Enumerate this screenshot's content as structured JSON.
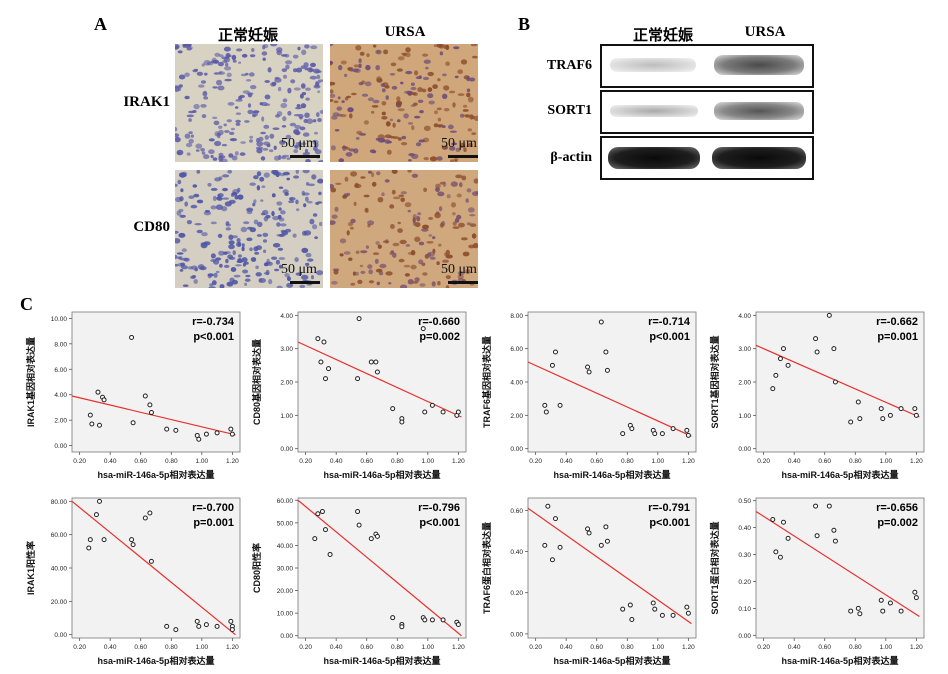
{
  "panel_a": {
    "letter": "A",
    "columns": [
      "正常妊娠",
      "URSA"
    ],
    "rows": [
      "IRAK1",
      "CD80"
    ],
    "scale_label": "50 μm"
  },
  "panel_b": {
    "letter": "B",
    "columns": [
      "正常妊娠",
      "URSA"
    ],
    "rows": [
      "TRAF6",
      "SORT1",
      "β-actin"
    ]
  },
  "panel_c": {
    "letter": "C"
  },
  "colors": {
    "regression_line": "#e8302c",
    "plot_bg": "#f2f2f2",
    "point_edge": "#222222"
  },
  "chart_data": [
    {
      "type": "scatter",
      "xlabel": "hsa-miR-146a-5p相对表达量",
      "ylabel": "IRAK1基因相对表达量",
      "xlim": [
        0.15,
        1.25
      ],
      "ylim": [
        -0.5,
        10.5
      ],
      "xticks": [
        "0.20",
        "0.40",
        "0.60",
        "0.80",
        "1.00",
        "1.20"
      ],
      "yticks": [
        "0.00",
        "2.00",
        "4.00",
        "6.00",
        "8.00",
        "10.00"
      ],
      "r_label": "r=-0.734",
      "p_label": "p<0.001",
      "line": [
        [
          0.15,
          3.9
        ],
        [
          1.22,
          0.85
        ]
      ],
      "x": [
        0.27,
        0.28,
        0.32,
        0.33,
        0.35,
        0.36,
        0.54,
        0.55,
        0.63,
        0.66,
        0.67,
        0.77,
        0.83,
        0.97,
        0.98,
        1.03,
        1.1,
        1.19,
        1.2
      ],
      "y": [
        2.4,
        1.7,
        4.2,
        1.6,
        3.8,
        3.6,
        8.5,
        1.8,
        3.9,
        3.2,
        2.6,
        1.3,
        1.2,
        0.8,
        0.5,
        0.9,
        1.0,
        1.3,
        0.9
      ]
    },
    {
      "type": "scatter",
      "xlabel": "hsa-miR-146a-5p相对表达量",
      "ylabel": "CD80基因相对表达量",
      "xlim": [
        0.15,
        1.25
      ],
      "ylim": [
        -0.1,
        4.1
      ],
      "xticks": [
        "0.20",
        "0.40",
        "0.60",
        "0.80",
        "1.00",
        "1.20"
      ],
      "yticks": [
        "0.00",
        "1.00",
        "2.00",
        "3.00",
        "4.00"
      ],
      "r_label": "r=-0.660",
      "p_label": "p=0.002",
      "line": [
        [
          0.15,
          3.2
        ],
        [
          1.22,
          0.95
        ]
      ],
      "x": [
        0.28,
        0.3,
        0.32,
        0.33,
        0.35,
        0.54,
        0.55,
        0.63,
        0.66,
        0.67,
        0.77,
        0.83,
        0.83,
        0.97,
        0.98,
        1.03,
        1.1,
        1.19,
        1.2
      ],
      "y": [
        3.3,
        2.6,
        3.2,
        2.1,
        2.4,
        2.1,
        3.9,
        2.6,
        2.6,
        2.3,
        1.2,
        0.9,
        0.8,
        3.6,
        1.1,
        1.3,
        1.1,
        1.0,
        1.1
      ]
    },
    {
      "type": "scatter",
      "xlabel": "hsa-miR-146a-5p相对表达量",
      "ylabel": "TRAF6基因相对表达量",
      "xlim": [
        0.15,
        1.25
      ],
      "ylim": [
        -0.2,
        8.2
      ],
      "xticks": [
        "0.20",
        "0.40",
        "0.60",
        "0.80",
        "1.00",
        "1.20"
      ],
      "yticks": [
        "0.00",
        "2.00",
        "4.00",
        "6.00",
        "8.00"
      ],
      "r_label": "r=-0.714",
      "p_label": "p<0.001",
      "line": [
        [
          0.15,
          5.2
        ],
        [
          1.22,
          0.75
        ]
      ],
      "x": [
        0.26,
        0.27,
        0.31,
        0.33,
        0.36,
        0.54,
        0.55,
        0.63,
        0.66,
        0.67,
        0.77,
        0.82,
        0.83,
        0.97,
        0.98,
        1.03,
        1.1,
        1.19,
        1.2
      ],
      "y": [
        2.6,
        2.2,
        5.0,
        5.8,
        2.6,
        4.9,
        4.6,
        7.6,
        5.8,
        4.7,
        0.9,
        1.4,
        1.2,
        1.1,
        0.9,
        0.9,
        1.2,
        1.1,
        0.8
      ]
    },
    {
      "type": "scatter",
      "xlabel": "hsa-miR-146a-5p相对表达量",
      "ylabel": "SORT1基因相对表达量",
      "xlim": [
        0.15,
        1.25
      ],
      "ylim": [
        -0.1,
        4.1
      ],
      "xticks": [
        "0.20",
        "0.40",
        "0.60",
        "0.80",
        "1.00",
        "1.20"
      ],
      "yticks": [
        "0.00",
        "1.00",
        "2.00",
        "3.00",
        "4.00"
      ],
      "r_label": "r=-0.662",
      "p_label": "p=0.001",
      "line": [
        [
          0.15,
          3.1
        ],
        [
          1.22,
          0.95
        ]
      ],
      "x": [
        0.26,
        0.28,
        0.31,
        0.33,
        0.36,
        0.54,
        0.55,
        0.63,
        0.66,
        0.67,
        0.77,
        0.82,
        0.83,
        0.97,
        0.98,
        1.03,
        1.1,
        1.19,
        1.2
      ],
      "y": [
        1.8,
        2.2,
        2.7,
        3.0,
        2.5,
        3.3,
        2.9,
        4.0,
        3.0,
        2.0,
        0.8,
        1.4,
        0.9,
        1.2,
        0.9,
        1.0,
        1.2,
        1.2,
        1.0
      ]
    },
    {
      "type": "scatter",
      "xlabel": "hsa-miR-146a-5p相对表达量",
      "ylabel": "IRAK1阳性率",
      "xlim": [
        0.15,
        1.25
      ],
      "ylim": [
        -2,
        82
      ],
      "xticks": [
        "0.20",
        "0.40",
        "0.60",
        "0.80",
        "1.00",
        "1.20"
      ],
      "yticks": [
        "0.00",
        "20.00",
        "40.00",
        "60.00",
        "80.00"
      ],
      "r_label": "r=-0.700",
      "p_label": "p=0.001",
      "line": [
        [
          0.15,
          80
        ],
        [
          1.22,
          0
        ]
      ],
      "x": [
        0.26,
        0.27,
        0.31,
        0.33,
        0.36,
        0.54,
        0.55,
        0.63,
        0.66,
        0.67,
        0.77,
        0.83,
        0.97,
        0.98,
        1.03,
        1.1,
        1.19,
        1.2,
        1.2
      ],
      "y": [
        52,
        57,
        72,
        80,
        57,
        57,
        54,
        70,
        73,
        44,
        5,
        3,
        8,
        5,
        6,
        5,
        8,
        5,
        3
      ]
    },
    {
      "type": "scatter",
      "xlabel": "hsa-miR-146a-5p相对表达量",
      "ylabel": "CD80阳性率",
      "xlim": [
        0.15,
        1.25
      ],
      "ylim": [
        -1,
        61
      ],
      "xticks": [
        "0.20",
        "0.40",
        "0.60",
        "0.80",
        "1.00",
        "1.20"
      ],
      "yticks": [
        "0.00",
        "10.00",
        "20.00",
        "30.00",
        "40.00",
        "50.00",
        "60.00"
      ],
      "r_label": "r=-0.796",
      "p_label": "p<0.001",
      "line": [
        [
          0.15,
          60
        ],
        [
          1.22,
          0
        ]
      ],
      "x": [
        0.26,
        0.28,
        0.31,
        0.33,
        0.36,
        0.54,
        0.55,
        0.63,
        0.66,
        0.67,
        0.77,
        0.83,
        0.83,
        0.97,
        0.98,
        1.03,
        1.1,
        1.19,
        1.2
      ],
      "y": [
        43,
        54,
        55,
        47,
        36,
        55,
        49,
        43,
        45,
        44,
        8,
        5,
        4,
        8,
        7,
        7,
        7,
        6,
        5
      ]
    },
    {
      "type": "scatter",
      "xlabel": "hsa-miR-146a-5p相对表达量",
      "ylabel": "TRAF6蛋白相对表达量",
      "xlim": [
        0.15,
        1.25
      ],
      "ylim": [
        -0.02,
        0.66
      ],
      "xticks": [
        "0.20",
        "0.40",
        "0.60",
        "0.80",
        "1.00",
        "1.20"
      ],
      "yticks": [
        "0.00",
        "0.20",
        "0.40",
        "0.60"
      ],
      "r_label": "r=-0.791",
      "p_label": "p<0.001",
      "line": [
        [
          0.15,
          0.61
        ],
        [
          1.22,
          0.05
        ]
      ],
      "x": [
        0.26,
        0.28,
        0.31,
        0.33,
        0.36,
        0.54,
        0.55,
        0.63,
        0.66,
        0.67,
        0.77,
        0.82,
        0.83,
        0.97,
        0.98,
        1.03,
        1.1,
        1.19,
        1.2
      ],
      "y": [
        0.43,
        0.62,
        0.36,
        0.56,
        0.42,
        0.51,
        0.49,
        0.43,
        0.52,
        0.45,
        0.12,
        0.14,
        0.07,
        0.15,
        0.12,
        0.09,
        0.09,
        0.13,
        0.1
      ]
    },
    {
      "type": "scatter",
      "xlabel": "hsa-miR-146a-5p相对表达量",
      "ylabel": "SORT1蛋白相对表达量",
      "xlim": [
        0.15,
        1.25
      ],
      "ylim": [
        -0.01,
        0.51
      ],
      "xticks": [
        "0.20",
        "0.40",
        "0.60",
        "0.80",
        "1.00",
        "1.20"
      ],
      "yticks": [
        "0.00",
        "0.10",
        "0.20",
        "0.30",
        "0.40",
        "0.50"
      ],
      "r_label": "r=-0.656",
      "p_label": "p=0.002",
      "line": [
        [
          0.15,
          0.46
        ],
        [
          1.22,
          0.07
        ]
      ],
      "x": [
        0.26,
        0.28,
        0.31,
        0.33,
        0.36,
        0.54,
        0.55,
        0.63,
        0.66,
        0.67,
        0.77,
        0.82,
        0.83,
        0.97,
        0.98,
        1.03,
        1.1,
        1.19,
        1.2
      ],
      "y": [
        0.43,
        0.31,
        0.29,
        0.42,
        0.36,
        0.48,
        0.37,
        0.48,
        0.39,
        0.35,
        0.09,
        0.1,
        0.08,
        0.13,
        0.09,
        0.12,
        0.09,
        0.16,
        0.14
      ]
    }
  ]
}
